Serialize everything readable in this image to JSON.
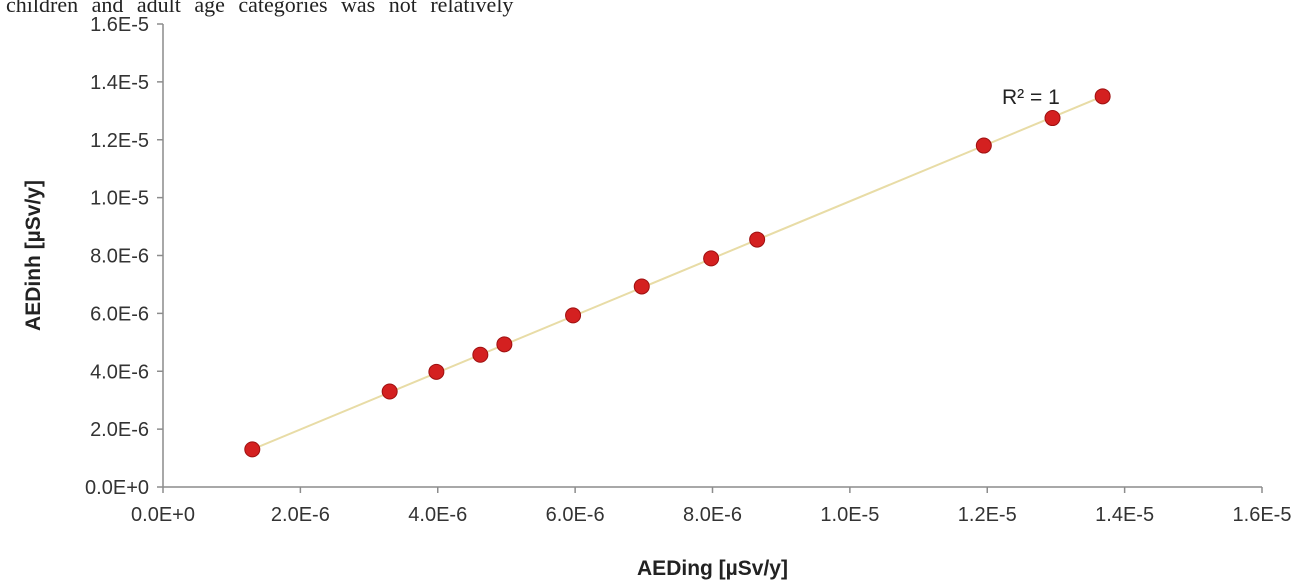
{
  "page": {
    "caption": "children and adult age categories was not relatively"
  },
  "chart_data": {
    "type": "scatter",
    "title": "",
    "xlabel": "AEDing [µSv/y]",
    "ylabel": "AEDinh [µSv/y]",
    "xlim": [
      0,
      1.6e-05
    ],
    "ylim": [
      0,
      1.6e-05
    ],
    "x_ticks": [
      0,
      2e-06,
      4e-06,
      6e-06,
      8e-06,
      1e-05,
      1.2e-05,
      1.4e-05,
      1.6e-05
    ],
    "x_tick_labels": [
      "0.0E+0",
      "2.0E-6",
      "4.0E-6",
      "6.0E-6",
      "8.0E-6",
      "1.0E-5",
      "1.2E-5",
      "1.4E-5",
      "1.6E-5"
    ],
    "y_ticks": [
      0,
      2e-06,
      4e-06,
      6e-06,
      8e-06,
      1e-05,
      1.2e-05,
      1.4e-05,
      1.6e-05
    ],
    "y_tick_labels": [
      "0.0E+0",
      "2.0E-6",
      "4.0E-6",
      "6.0E-6",
      "8.0E-6",
      "1.0E-5",
      "1.2E-5",
      "1.4E-5",
      "1.6E-5"
    ],
    "grid": false,
    "points": {
      "x": [
        1.3e-06,
        3.3e-06,
        3.98e-06,
        4.62e-06,
        4.97e-06,
        5.97e-06,
        6.97e-06,
        7.98e-06,
        8.65e-06,
        1.195e-05,
        1.295e-05,
        1.368e-05
      ],
      "y": [
        1.3e-06,
        3.3e-06,
        3.98e-06,
        4.57e-06,
        4.93e-06,
        5.93e-06,
        6.93e-06,
        7.9e-06,
        8.55e-06,
        1.18e-05,
        1.275e-05,
        1.35e-05
      ],
      "color": "#d42020"
    },
    "trendline": {
      "x": [
        1.3e-06,
        1.368e-05
      ],
      "y": [
        1.3e-06,
        1.35e-05
      ],
      "color": "#e8dca6"
    },
    "annotation": "R² = 1"
  }
}
